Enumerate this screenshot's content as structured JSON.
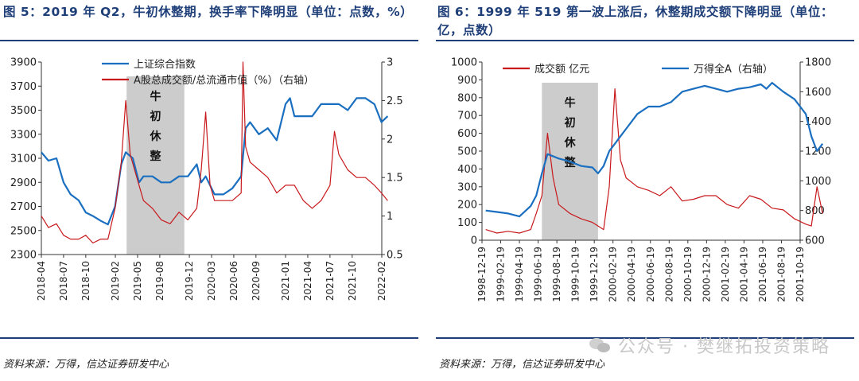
{
  "left": {
    "title": "图 5：2019 年 Q2，牛初休整期，换手率下降明显（单位：点数，%）",
    "source": "资料来源：万得，信达证券研发中心",
    "shade_label": [
      "牛",
      "初",
      "休",
      "整"
    ],
    "colors": {
      "primary": "#1a6fc0",
      "secondary": "#c8191c",
      "shade": "#cccccc",
      "title": "#1f3f79"
    },
    "chart_data": {
      "type": "line",
      "x": [
        "2018-04",
        "2018-07",
        "2018-10",
        "2019-02",
        "2019-05",
        "2019-08",
        "2019-12",
        "2020-03",
        "2020-06",
        "2020-09",
        "2021-01",
        "2021-04",
        "2021-07",
        "2021-10",
        "2022-02"
      ],
      "ylim": [
        2300,
        3900
      ],
      "yticks": [
        2300,
        2500,
        2700,
        2900,
        3100,
        3300,
        3500,
        3700,
        3900
      ],
      "y2lim": [
        0.5,
        3
      ],
      "y2ticks": [
        0.5,
        1,
        1.5,
        2,
        2.5,
        3
      ],
      "shade_range": [
        2019.21,
        2019.86
      ],
      "series": [
        {
          "name": "上证综合指数",
          "axis": "left",
          "x": [
            2018.25,
            2018.33,
            2018.42,
            2018.5,
            2018.58,
            2018.67,
            2018.75,
            2018.83,
            2018.92,
            2019.0,
            2019.08,
            2019.15,
            2019.2,
            2019.28,
            2019.35,
            2019.4,
            2019.5,
            2019.6,
            2019.7,
            2019.8,
            2019.9,
            2020.0,
            2020.05,
            2020.1,
            2020.2,
            2020.3,
            2020.4,
            2020.5,
            2020.55,
            2020.6,
            2020.7,
            2020.8,
            2020.9,
            2021.0,
            2021.05,
            2021.1,
            2021.2,
            2021.3,
            2021.4,
            2021.5,
            2021.6,
            2021.7,
            2021.8,
            2021.9,
            2022.0,
            2022.08,
            2022.15
          ],
          "values": [
            3150,
            3080,
            3100,
            2900,
            2800,
            2750,
            2650,
            2620,
            2580,
            2550,
            2700,
            3050,
            3150,
            3100,
            2900,
            2950,
            2950,
            2900,
            2900,
            2950,
            2950,
            3050,
            2900,
            2950,
            2800,
            2800,
            2850,
            2950,
            3350,
            3400,
            3300,
            3350,
            3250,
            3550,
            3600,
            3450,
            3450,
            3450,
            3550,
            3550,
            3550,
            3500,
            3600,
            3600,
            3550,
            3400,
            3450
          ]
        },
        {
          "name": "A股总成交额/总流通市值（%）（右轴）",
          "axis": "right",
          "x": [
            2018.25,
            2018.33,
            2018.42,
            2018.5,
            2018.58,
            2018.67,
            2018.75,
            2018.83,
            2018.92,
            2019.0,
            2019.08,
            2019.15,
            2019.2,
            2019.25,
            2019.3,
            2019.4,
            2019.5,
            2019.6,
            2019.7,
            2019.8,
            2019.9,
            2020.0,
            2020.05,
            2020.1,
            2020.15,
            2020.2,
            2020.3,
            2020.4,
            2020.5,
            2020.52,
            2020.55,
            2020.6,
            2020.7,
            2020.8,
            2020.9,
            2021.0,
            2021.1,
            2021.2,
            2021.3,
            2021.4,
            2021.5,
            2021.55,
            2021.6,
            2021.7,
            2021.8,
            2021.9,
            2022.0,
            2022.08,
            2022.15
          ],
          "values": [
            1.0,
            0.85,
            0.9,
            0.75,
            0.7,
            0.7,
            0.75,
            0.65,
            0.7,
            0.7,
            1.1,
            1.7,
            2.5,
            1.8,
            1.6,
            1.2,
            1.1,
            0.95,
            0.9,
            1.05,
            0.95,
            1.1,
            1.6,
            2.35,
            1.4,
            1.2,
            1.2,
            1.2,
            1.3,
            3.0,
            1.9,
            1.7,
            1.6,
            1.5,
            1.3,
            1.4,
            1.4,
            1.2,
            1.1,
            1.2,
            1.4,
            2.1,
            1.8,
            1.6,
            1.5,
            1.5,
            1.4,
            1.3,
            1.2
          ]
        }
      ]
    }
  },
  "right": {
    "title": "图 6：1999 年 519 第一波上涨后，休整期成交额下降明显（单位：亿，点数）",
    "source": "资料来源：万得，信达证券研发中心",
    "shade_label": [
      "牛",
      "初",
      "休",
      "整"
    ],
    "watermark": "公众号 · 樊继拓投资策略",
    "colors": {
      "primary": "#1a6fc0",
      "secondary": "#c8191c",
      "shade": "#cccccc",
      "title": "#1f3f79"
    },
    "chart_data": {
      "type": "line",
      "x": [
        "1998-12-19",
        "1999-02-19",
        "1999-04-19",
        "1999-06-19",
        "1999-08-19",
        "1999-10-19",
        "1999-12-19",
        "2000-02-19",
        "2000-04-19",
        "2000-06-19",
        "2000-08-19",
        "2000-10-19",
        "2000-12-19",
        "2001-02-19",
        "2001-04-19",
        "2001-06-19",
        "2001-08-19",
        "2001-10-19"
      ],
      "ylim": [
        0,
        1000
      ],
      "yticks": [
        0,
        100,
        200,
        300,
        400,
        500,
        600,
        700,
        800,
        900,
        1000
      ],
      "y2lim": [
        600,
        1800
      ],
      "y2ticks": [
        600,
        800,
        1000,
        1200,
        1400,
        1600,
        1800
      ],
      "shade_range": [
        1999.45,
        1999.95
      ],
      "series": [
        {
          "name": "成交额 亿元",
          "axis": "left",
          "x": [
            1998.95,
            1999.05,
            1999.15,
            1999.25,
            1999.35,
            1999.4,
            1999.45,
            1999.5,
            1999.55,
            1999.6,
            1999.7,
            1999.8,
            1999.9,
            1999.95,
            2000.0,
            2000.05,
            2000.1,
            2000.15,
            2000.2,
            2000.3,
            2000.4,
            2000.5,
            2000.6,
            2000.7,
            2000.8,
            2000.9,
            2001.0,
            2001.1,
            2001.2,
            2001.3,
            2001.4,
            2001.5,
            2001.6,
            2001.7,
            2001.8,
            2001.85,
            2001.9,
            2001.95
          ],
          "values": [
            60,
            40,
            50,
            40,
            60,
            150,
            250,
            600,
            350,
            200,
            150,
            120,
            100,
            80,
            60,
            300,
            850,
            450,
            350,
            300,
            280,
            250,
            300,
            220,
            230,
            250,
            250,
            200,
            180,
            250,
            230,
            180,
            170,
            120,
            90,
            80,
            300,
            150
          ]
        },
        {
          "name": "万得全A（右轴）",
          "axis": "right",
          "x": [
            1998.95,
            1999.05,
            1999.15,
            1999.25,
            1999.35,
            1999.4,
            1999.45,
            1999.5,
            1999.6,
            1999.7,
            1999.8,
            1999.9,
            1999.95,
            2000.0,
            2000.05,
            2000.1,
            2000.15,
            2000.2,
            2000.3,
            2000.4,
            2000.5,
            2000.6,
            2000.7,
            2000.8,
            2000.9,
            2001.0,
            2001.1,
            2001.2,
            2001.3,
            2001.4,
            2001.45,
            2001.5,
            2001.6,
            2001.7,
            2001.8,
            2001.85,
            2001.9,
            2001.95
          ],
          "values": [
            800,
            790,
            780,
            760,
            830,
            900,
            1050,
            1180,
            1150,
            1130,
            1100,
            1090,
            1050,
            1100,
            1200,
            1250,
            1300,
            1350,
            1450,
            1500,
            1500,
            1530,
            1600,
            1620,
            1640,
            1620,
            1600,
            1620,
            1630,
            1650,
            1620,
            1660,
            1600,
            1550,
            1450,
            1300,
            1200,
            1250
          ]
        }
      ]
    }
  }
}
